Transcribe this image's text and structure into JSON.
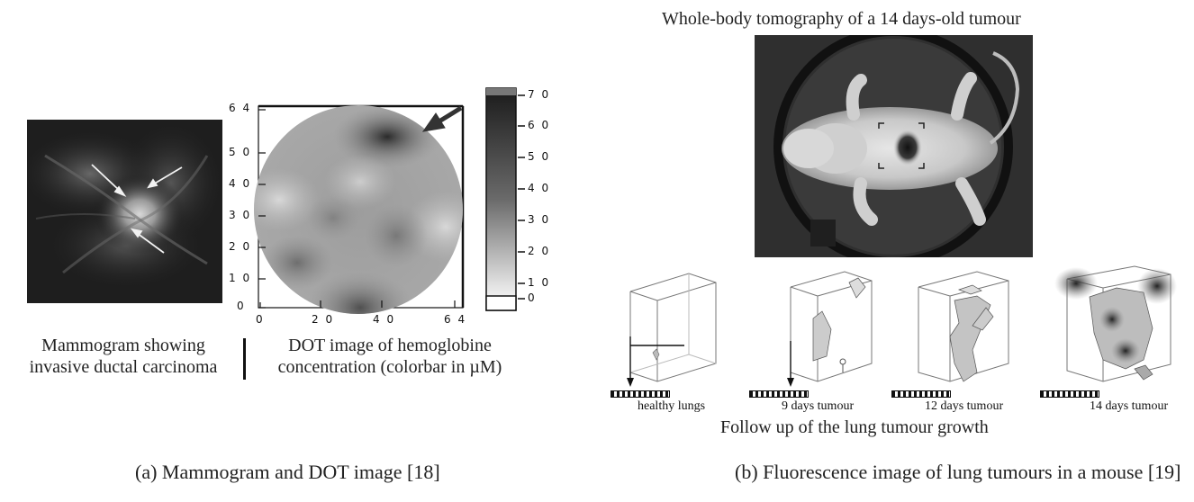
{
  "left_figure": {
    "mammogram_caption_line1": "Mammogram showing",
    "mammogram_caption_line2": "invasive ductal carcinoma",
    "dot_caption_line1": "DOT image of hemoglobine",
    "dot_caption_line2": "concentration (colorbar in µM)",
    "dot_y_ticks": [
      "6 4",
      "5 0",
      "4 0",
      "3 0",
      "2 0",
      "1 0",
      "0"
    ],
    "dot_x_ticks": [
      "0",
      "2 0",
      "4 0",
      "6 4"
    ],
    "colorbar_ticks": [
      "7 0",
      "6 0",
      "5 0",
      "4 0",
      "3 0",
      "2 0",
      "1 0",
      "0"
    ],
    "subcaption": "(a) Mammogram and DOT image [18]"
  },
  "right_figure": {
    "title": "Whole-body tomography of a 14 days-old tumour",
    "stage_labels": [
      "healthy lungs",
      "9 days tumour",
      "12 days tumour",
      "14 days tumour"
    ],
    "followup_caption": "Follow up of the lung tumour growth",
    "subcaption": "(b) Fluorescence image of lung tumours in a mouse [19]"
  }
}
